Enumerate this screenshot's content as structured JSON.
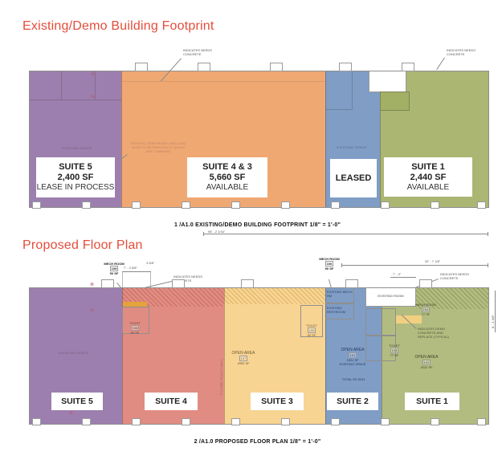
{
  "colors": {
    "title_red": "#e44d3a",
    "suite5_purple": "#9c7fae",
    "suite43_orange": "#f0a873",
    "leased_blue": "#7f9dc5",
    "plan1_green": "#aab672",
    "suite4_red": "#e18c82",
    "suite3_yellow": "#f8d492",
    "suite2_blue": "#7f9dc5",
    "suite1_green": "#b3bc80",
    "wall_grey": "#8f8f8f"
  },
  "plan1": {
    "title": "Existing/Demo Building Footprint",
    "caption": "1 /A1.0  EXISTING/DEMO BUILDING FOOTPRINT  1/8\" = 1'-0\"",
    "note_concrete_left": "INDICATES NEEDS CONCRETE",
    "note_concrete_right": "INDICATES NEEDS CONCRETE",
    "demo_note": "EXISTING (TEMPORARY) WALL AND DOOR TO BE REMOVED IF SUITES ARE COMBINED",
    "suite5": {
      "name": "SUITE 5",
      "area": "2,400 SF",
      "status": "LEASE IN PROCESS",
      "note": "EXISTING SPACE"
    },
    "suite43": {
      "name": "SUITE 4 & 3",
      "area": "5,660 SF",
      "status": "AVAILABLE"
    },
    "leased": {
      "name": "LEASED",
      "note": "EXISTING SPACE"
    },
    "suite1": {
      "name": "SUITE 1",
      "area": "2,440 SF",
      "status": "AVAILABLE"
    }
  },
  "plan2": {
    "title": "Proposed Floor Plan",
    "caption": "2 /A1.0  PROPOSED FLOOR PLAN  1/8\" = 1'-0\"",
    "dims": {
      "overall": "98' - 2 1/16\"",
      "right_span": "32' - 7 1/8\"",
      "mech_w": "7' - 3 5/8\"",
      "wall_w": "3 5/8\"",
      "room_w": "7' - 3\"",
      "right_h": "8' - 1 5/8\""
    },
    "note_concrete_left": "INDICATES NEEDS CONCRETE",
    "note_concrete_right": "INDICATES NEEDS CONCRETE",
    "note_demo_concrete": "INDICATES DEMO CONCRETE AND REPLACE (TYPICAL)",
    "existing_room": "EXISTING ROOM",
    "mech109": {
      "name": "MECH ROOM",
      "number": "109",
      "area": "50 SF"
    },
    "mech106": {
      "name": "MECH ROOM",
      "number": "106",
      "area": "50 SF"
    },
    "suite5": {
      "label": "SUITE 5",
      "note": "EXISTING SPACE"
    },
    "suite4": {
      "label": "SUITE 4",
      "toilet": {
        "name": "TOILET",
        "number": "108",
        "area": "50 SF"
      },
      "wall_note": "FUTURE TENANT WALL"
    },
    "suite3": {
      "label": "SUITE 3",
      "open_area": {
        "name": "OPEN AREA",
        "number": "107",
        "area": "4954 SF"
      },
      "toilet": {
        "name": "TOILET",
        "number": "105",
        "area": "50 SF"
      }
    },
    "suite2": {
      "label": "SUITE 2",
      "mech_note": "EXISTING MECH RM",
      "restroom_note": "EXISTING RESTROOM",
      "open_area": {
        "name": "OPEN AREA",
        "number": "101",
        "area": "1301 SF",
        "note": "EXISTING SPACE"
      },
      "total": "TOTAL SF 8191"
    },
    "suite1": {
      "label": "SUITE 1",
      "mech": {
        "name": "MECH ROOM",
        "number": "104",
        "area": "77 SF"
      },
      "toilet": {
        "name": "TOILET",
        "number": "103",
        "area": "77 SF"
      },
      "open_area": {
        "name": "OPEN AREA",
        "number": "102",
        "area": "2022 SF"
      }
    }
  }
}
